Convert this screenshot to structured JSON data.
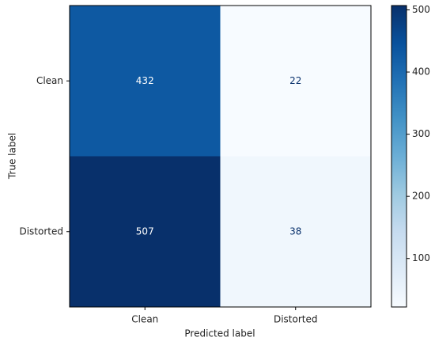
{
  "chart_data": {
    "type": "heatmap",
    "xlabel": "Predicted label",
    "ylabel": "True label",
    "x_categories": [
      "Clean",
      "Distorted"
    ],
    "y_categories": [
      "Clean",
      "Distorted"
    ],
    "values": [
      [
        432,
        22
      ],
      [
        507,
        38
      ]
    ],
    "colormap": "Blues",
    "clim": [
      22,
      507
    ],
    "colorbar_ticks": [
      100,
      200,
      300,
      400,
      500
    ]
  }
}
